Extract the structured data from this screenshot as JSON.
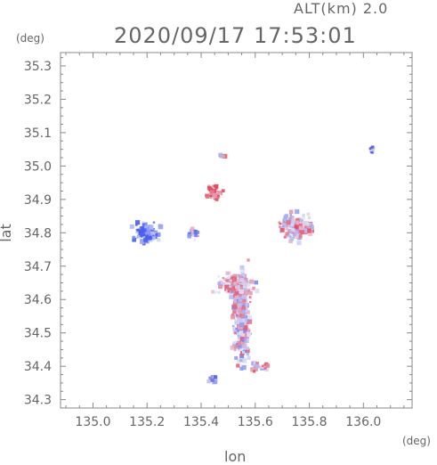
{
  "header": {
    "alt_label": "ALT(km) 2.0",
    "timestamp": "2020/09/17 17:53:01"
  },
  "chart_data": {
    "type": "heatmap",
    "title": "2020/09/17 17:53:01",
    "xlabel": "lon",
    "ylabel": "lat",
    "xunit": "(deg)",
    "yunit": "(deg)",
    "xlim": [
      134.88,
      136.18
    ],
    "ylim": [
      34.275,
      35.34
    ],
    "xticks": [
      135.0,
      135.2,
      135.4,
      135.6,
      135.8,
      136.0
    ],
    "xtick_labels": [
      "135.0",
      "135.2",
      "135.4",
      "135.6",
      "135.8",
      "136.0"
    ],
    "yticks": [
      34.3,
      34.4,
      34.5,
      34.6,
      34.7,
      34.8,
      34.9,
      35.0,
      35.1,
      35.2,
      35.3
    ],
    "ytick_labels": [
      "34.3",
      "34.4",
      "34.5",
      "34.6",
      "34.7",
      "34.8",
      "34.9",
      "35.0",
      "35.1",
      "35.2",
      "35.3"
    ],
    "grid": false,
    "colors": {
      "positive": "#e8465a",
      "negative": "#4a5ff0",
      "neutral": "#d9dbf7"
    },
    "regions": [
      {
        "lon": 135.55,
        "lat": 34.55,
        "rlon": 0.045,
        "rlat": 0.2,
        "n": 260,
        "bias": 0.05
      },
      {
        "lon": 135.53,
        "lat": 34.64,
        "rlon": 0.09,
        "rlat": 0.05,
        "n": 140,
        "bias": 0.1
      },
      {
        "lon": 135.2,
        "lat": 34.8,
        "rlon": 0.07,
        "rlat": 0.04,
        "n": 120,
        "bias": -0.9
      },
      {
        "lon": 135.45,
        "lat": 34.92,
        "rlon": 0.035,
        "rlat": 0.03,
        "n": 50,
        "bias": 0.6
      },
      {
        "lon": 135.75,
        "lat": 34.82,
        "rlon": 0.09,
        "rlat": 0.06,
        "n": 130,
        "bias": 0.25
      },
      {
        "lon": 135.48,
        "lat": 35.03,
        "rlon": 0.015,
        "rlat": 0.008,
        "n": 8,
        "bias": 0.4
      },
      {
        "lon": 136.03,
        "lat": 35.05,
        "rlon": 0.015,
        "rlat": 0.02,
        "n": 12,
        "bias": -0.6
      },
      {
        "lon": 135.44,
        "lat": 34.36,
        "rlon": 0.02,
        "rlat": 0.012,
        "n": 12,
        "bias": -0.4
      },
      {
        "lon": 135.62,
        "lat": 34.4,
        "rlon": 0.04,
        "rlat": 0.025,
        "n": 25,
        "bias": 0.2
      },
      {
        "lon": 135.37,
        "lat": 34.8,
        "rlon": 0.03,
        "rlat": 0.03,
        "n": 20,
        "bias": -0.3
      }
    ]
  }
}
